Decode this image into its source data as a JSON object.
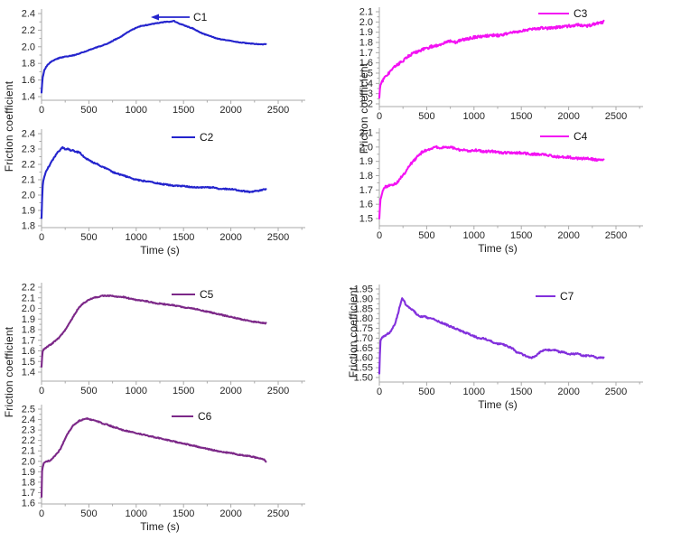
{
  "figure": {
    "ylabel": "Friction coefficient",
    "xlabel": "Time (s)"
  },
  "chart_data": [
    {
      "id": "c1",
      "type": "line",
      "title": "",
      "legend": {
        "label": "C1",
        "style": "arrow"
      },
      "color": "#2424cd",
      "noise": 0.004,
      "seed": 1,
      "xlabel": "",
      "ylabel": "Friction coefficient",
      "xticks": [
        0,
        500,
        1000,
        1500,
        2000,
        2500
      ],
      "ylim": [
        1.4,
        2.4
      ],
      "ytick_step": 0.2,
      "y_decimals": 1,
      "points": [
        [
          0,
          1.45
        ],
        [
          10,
          1.62
        ],
        [
          30,
          1.72
        ],
        [
          60,
          1.78
        ],
        [
          100,
          1.82
        ],
        [
          150,
          1.85
        ],
        [
          200,
          1.87
        ],
        [
          250,
          1.88
        ],
        [
          300,
          1.89
        ],
        [
          350,
          1.9
        ],
        [
          400,
          1.92
        ],
        [
          450,
          1.94
        ],
        [
          500,
          1.96
        ],
        [
          550,
          1.98
        ],
        [
          600,
          2.0
        ],
        [
          650,
          2.02
        ],
        [
          700,
          2.04
        ],
        [
          750,
          2.07
        ],
        [
          800,
          2.1
        ],
        [
          850,
          2.13
        ],
        [
          900,
          2.17
        ],
        [
          950,
          2.2
        ],
        [
          1000,
          2.23
        ],
        [
          1050,
          2.25
        ],
        [
          1100,
          2.26
        ],
        [
          1150,
          2.27
        ],
        [
          1200,
          2.28
        ],
        [
          1250,
          2.29
        ],
        [
          1300,
          2.3
        ],
        [
          1350,
          2.3
        ],
        [
          1400,
          2.31
        ],
        [
          1450,
          2.28
        ],
        [
          1500,
          2.26
        ],
        [
          1550,
          2.24
        ],
        [
          1600,
          2.22
        ],
        [
          1650,
          2.19
        ],
        [
          1700,
          2.16
        ],
        [
          1750,
          2.14
        ],
        [
          1800,
          2.12
        ],
        [
          1850,
          2.1
        ],
        [
          1900,
          2.09
        ],
        [
          1950,
          2.08
        ],
        [
          2000,
          2.07
        ],
        [
          2050,
          2.06
        ],
        [
          2100,
          2.05
        ],
        [
          2200,
          2.04
        ],
        [
          2300,
          2.03
        ],
        [
          2370,
          2.03
        ]
      ]
    },
    {
      "id": "c2",
      "type": "line",
      "title": "",
      "legend": {
        "label": "C2",
        "style": "line"
      },
      "color": "#2424cd",
      "noise": 0.004,
      "seed": 2,
      "xlabel": "Time (s)",
      "ylabel": "Friction coefficient",
      "xticks": [
        0,
        500,
        1000,
        1500,
        2000,
        2500
      ],
      "ylim": [
        1.8,
        2.4
      ],
      "ytick_step": 0.1,
      "y_decimals": 1,
      "points": [
        [
          0,
          1.85
        ],
        [
          10,
          2.05
        ],
        [
          20,
          2.1
        ],
        [
          40,
          2.14
        ],
        [
          60,
          2.17
        ],
        [
          80,
          2.19
        ],
        [
          100,
          2.21
        ],
        [
          130,
          2.24
        ],
        [
          160,
          2.27
        ],
        [
          190,
          2.29
        ],
        [
          220,
          2.31
        ],
        [
          250,
          2.3
        ],
        [
          280,
          2.3
        ],
        [
          310,
          2.29
        ],
        [
          340,
          2.29
        ],
        [
          370,
          2.28
        ],
        [
          400,
          2.28
        ],
        [
          430,
          2.26
        ],
        [
          460,
          2.24
        ],
        [
          500,
          2.23
        ],
        [
          550,
          2.21
        ],
        [
          600,
          2.2
        ],
        [
          650,
          2.18
        ],
        [
          700,
          2.17
        ],
        [
          750,
          2.15
        ],
        [
          800,
          2.14
        ],
        [
          850,
          2.13
        ],
        [
          900,
          2.12
        ],
        [
          950,
          2.11
        ],
        [
          1000,
          2.1
        ],
        [
          1100,
          2.09
        ],
        [
          1200,
          2.08
        ],
        [
          1300,
          2.07
        ],
        [
          1400,
          2.06
        ],
        [
          1500,
          2.06
        ],
        [
          1600,
          2.05
        ],
        [
          1700,
          2.05
        ],
        [
          1800,
          2.05
        ],
        [
          1900,
          2.04
        ],
        [
          2000,
          2.04
        ],
        [
          2100,
          2.03
        ],
        [
          2200,
          2.02
        ],
        [
          2300,
          2.03
        ],
        [
          2370,
          2.04
        ]
      ]
    },
    {
      "id": "c3",
      "type": "line",
      "title": "",
      "legend": {
        "label": "C3",
        "style": "line"
      },
      "color": "#f312f3",
      "noise": 0.013,
      "seed": 3,
      "xlabel": "",
      "ylabel": "Friction coefficient",
      "xticks": [
        0,
        500,
        1000,
        1500,
        2000,
        2500
      ],
      "ylim": [
        1.2,
        2.1
      ],
      "ytick_step": 0.1,
      "y_decimals": 1,
      "points": [
        [
          0,
          1.26
        ],
        [
          10,
          1.38
        ],
        [
          30,
          1.42
        ],
        [
          60,
          1.46
        ],
        [
          100,
          1.5
        ],
        [
          150,
          1.55
        ],
        [
          200,
          1.59
        ],
        [
          250,
          1.62
        ],
        [
          300,
          1.66
        ],
        [
          350,
          1.69
        ],
        [
          400,
          1.71
        ],
        [
          450,
          1.73
        ],
        [
          500,
          1.74
        ],
        [
          550,
          1.76
        ],
        [
          600,
          1.77
        ],
        [
          650,
          1.78
        ],
        [
          700,
          1.8
        ],
        [
          750,
          1.81
        ],
        [
          800,
          1.8
        ],
        [
          850,
          1.82
        ],
        [
          900,
          1.83
        ],
        [
          950,
          1.84
        ],
        [
          1000,
          1.85
        ],
        [
          1100,
          1.86
        ],
        [
          1200,
          1.87
        ],
        [
          1300,
          1.87
        ],
        [
          1400,
          1.9
        ],
        [
          1500,
          1.91
        ],
        [
          1600,
          1.93
        ],
        [
          1700,
          1.94
        ],
        [
          1800,
          1.94
        ],
        [
          1900,
          1.95
        ],
        [
          2000,
          1.96
        ],
        [
          2100,
          1.97
        ],
        [
          2200,
          1.96
        ],
        [
          2300,
          1.99
        ],
        [
          2370,
          2.0
        ]
      ]
    },
    {
      "id": "c4",
      "type": "line",
      "title": "",
      "legend": {
        "label": "C4",
        "style": "line"
      },
      "color": "#f312f3",
      "noise": 0.008,
      "seed": 4,
      "xlabel": "Time (s)",
      "ylabel": "Friction coefficient",
      "xticks": [
        0,
        500,
        1000,
        1500,
        2000,
        2500
      ],
      "ylim": [
        1.5,
        2.1
      ],
      "ytick_step": 0.1,
      "y_decimals": 1,
      "points": [
        [
          0,
          1.5
        ],
        [
          10,
          1.62
        ],
        [
          20,
          1.66
        ],
        [
          40,
          1.7
        ],
        [
          60,
          1.72
        ],
        [
          100,
          1.73
        ],
        [
          130,
          1.74
        ],
        [
          160,
          1.74
        ],
        [
          200,
          1.76
        ],
        [
          230,
          1.79
        ],
        [
          260,
          1.81
        ],
        [
          300,
          1.85
        ],
        [
          330,
          1.88
        ],
        [
          360,
          1.9
        ],
        [
          400,
          1.93
        ],
        [
          430,
          1.95
        ],
        [
          460,
          1.97
        ],
        [
          500,
          1.98
        ],
        [
          550,
          1.99
        ],
        [
          600,
          2.0
        ],
        [
          650,
          1.99
        ],
        [
          700,
          2.0
        ],
        [
          750,
          2.0
        ],
        [
          800,
          1.99
        ],
        [
          850,
          1.98
        ],
        [
          900,
          1.98
        ],
        [
          950,
          1.97
        ],
        [
          1000,
          1.98
        ],
        [
          1100,
          1.97
        ],
        [
          1200,
          1.97
        ],
        [
          1300,
          1.96
        ],
        [
          1400,
          1.96
        ],
        [
          1500,
          1.96
        ],
        [
          1600,
          1.95
        ],
        [
          1700,
          1.95
        ],
        [
          1800,
          1.94
        ],
        [
          1900,
          1.93
        ],
        [
          2000,
          1.93
        ],
        [
          2100,
          1.92
        ],
        [
          2200,
          1.92
        ],
        [
          2300,
          1.91
        ],
        [
          2370,
          1.91
        ]
      ]
    },
    {
      "id": "c5",
      "type": "line",
      "title": "",
      "legend": {
        "label": "C5",
        "style": "line"
      },
      "color": "#7c2888",
      "noise": 0.005,
      "seed": 5,
      "xlabel": "",
      "ylabel": "Friction coefficient",
      "xticks": [
        0,
        500,
        1000,
        1500,
        2000,
        2500
      ],
      "ylim": [
        1.4,
        2.2
      ],
      "ytick_step": 0.1,
      "y_decimals": 1,
      "points": [
        [
          0,
          1.45
        ],
        [
          10,
          1.6
        ],
        [
          30,
          1.62
        ],
        [
          60,
          1.64
        ],
        [
          100,
          1.66
        ],
        [
          140,
          1.69
        ],
        [
          180,
          1.72
        ],
        [
          220,
          1.76
        ],
        [
          260,
          1.81
        ],
        [
          300,
          1.87
        ],
        [
          340,
          1.93
        ],
        [
          380,
          1.99
        ],
        [
          420,
          2.03
        ],
        [
          460,
          2.06
        ],
        [
          500,
          2.08
        ],
        [
          550,
          2.1
        ],
        [
          600,
          2.11
        ],
        [
          650,
          2.12
        ],
        [
          700,
          2.12
        ],
        [
          750,
          2.12
        ],
        [
          800,
          2.11
        ],
        [
          850,
          2.11
        ],
        [
          900,
          2.1
        ],
        [
          950,
          2.09
        ],
        [
          1000,
          2.08
        ],
        [
          1100,
          2.07
        ],
        [
          1200,
          2.05
        ],
        [
          1300,
          2.04
        ],
        [
          1400,
          2.03
        ],
        [
          1500,
          2.01
        ],
        [
          1600,
          2.0
        ],
        [
          1700,
          1.98
        ],
        [
          1800,
          1.96
        ],
        [
          1900,
          1.94
        ],
        [
          2000,
          1.92
        ],
        [
          2100,
          1.9
        ],
        [
          2200,
          1.88
        ],
        [
          2300,
          1.87
        ],
        [
          2370,
          1.86
        ]
      ]
    },
    {
      "id": "c6",
      "type": "line",
      "title": "",
      "legend": {
        "label": "C6",
        "style": "line"
      },
      "color": "#7c2888",
      "noise": 0.005,
      "seed": 6,
      "xlabel": "Time (s)",
      "ylabel": "Friction coefficient",
      "xticks": [
        0,
        500,
        1000,
        1500,
        2000,
        2500
      ],
      "ylim": [
        1.6,
        2.5
      ],
      "ytick_step": 0.1,
      "y_decimals": 1,
      "points": [
        [
          0,
          1.66
        ],
        [
          5,
          1.9
        ],
        [
          15,
          1.96
        ],
        [
          30,
          1.99
        ],
        [
          60,
          2.0
        ],
        [
          100,
          2.01
        ],
        [
          130,
          2.04
        ],
        [
          160,
          2.07
        ],
        [
          200,
          2.12
        ],
        [
          230,
          2.18
        ],
        [
          260,
          2.24
        ],
        [
          300,
          2.3
        ],
        [
          330,
          2.34
        ],
        [
          360,
          2.36
        ],
        [
          400,
          2.39
        ],
        [
          440,
          2.4
        ],
        [
          480,
          2.41
        ],
        [
          520,
          2.4
        ],
        [
          560,
          2.39
        ],
        [
          600,
          2.38
        ],
        [
          650,
          2.36
        ],
        [
          700,
          2.35
        ],
        [
          750,
          2.33
        ],
        [
          800,
          2.32
        ],
        [
          850,
          2.3
        ],
        [
          900,
          2.29
        ],
        [
          950,
          2.28
        ],
        [
          1000,
          2.27
        ],
        [
          1100,
          2.25
        ],
        [
          1200,
          2.23
        ],
        [
          1300,
          2.21
        ],
        [
          1400,
          2.19
        ],
        [
          1500,
          2.17
        ],
        [
          1600,
          2.15
        ],
        [
          1700,
          2.13
        ],
        [
          1800,
          2.11
        ],
        [
          1900,
          2.09
        ],
        [
          2000,
          2.08
        ],
        [
          2100,
          2.06
        ],
        [
          2200,
          2.05
        ],
        [
          2300,
          2.03
        ],
        [
          2350,
          2.02
        ],
        [
          2370,
          2.0
        ]
      ]
    },
    {
      "id": "c7",
      "type": "line",
      "title": "",
      "legend": {
        "label": "C7",
        "style": "line"
      },
      "color": "#8230dc",
      "noise": 0.004,
      "seed": 7,
      "xlabel": "Time (s)",
      "ylabel": "Friction coefficient",
      "xticks": [
        0,
        500,
        1000,
        1500,
        2000,
        2500
      ],
      "ylim": [
        1.5,
        1.95
      ],
      "ytick_step": 0.05,
      "y_decimals": 2,
      "points": [
        [
          0,
          1.52
        ],
        [
          10,
          1.68
        ],
        [
          20,
          1.7
        ],
        [
          50,
          1.71
        ],
        [
          80,
          1.72
        ],
        [
          110,
          1.73
        ],
        [
          140,
          1.75
        ],
        [
          170,
          1.78
        ],
        [
          200,
          1.83
        ],
        [
          220,
          1.87
        ],
        [
          240,
          1.9
        ],
        [
          260,
          1.89
        ],
        [
          280,
          1.87
        ],
        [
          300,
          1.86
        ],
        [
          330,
          1.85
        ],
        [
          360,
          1.84
        ],
        [
          400,
          1.82
        ],
        [
          440,
          1.81
        ],
        [
          480,
          1.81
        ],
        [
          520,
          1.8
        ],
        [
          560,
          1.8
        ],
        [
          600,
          1.79
        ],
        [
          650,
          1.78
        ],
        [
          700,
          1.77
        ],
        [
          750,
          1.76
        ],
        [
          800,
          1.75
        ],
        [
          850,
          1.74
        ],
        [
          900,
          1.73
        ],
        [
          950,
          1.72
        ],
        [
          1000,
          1.71
        ],
        [
          1050,
          1.7
        ],
        [
          1100,
          1.7
        ],
        [
          1150,
          1.69
        ],
        [
          1200,
          1.68
        ],
        [
          1250,
          1.67
        ],
        [
          1300,
          1.67
        ],
        [
          1350,
          1.66
        ],
        [
          1400,
          1.65
        ],
        [
          1450,
          1.63
        ],
        [
          1500,
          1.62
        ],
        [
          1550,
          1.61
        ],
        [
          1600,
          1.6
        ],
        [
          1650,
          1.61
        ],
        [
          1700,
          1.63
        ],
        [
          1750,
          1.64
        ],
        [
          1800,
          1.64
        ],
        [
          1850,
          1.64
        ],
        [
          1900,
          1.63
        ],
        [
          1950,
          1.63
        ],
        [
          2000,
          1.62
        ],
        [
          2050,
          1.62
        ],
        [
          2100,
          1.62
        ],
        [
          2150,
          1.61
        ],
        [
          2200,
          1.61
        ],
        [
          2250,
          1.61
        ],
        [
          2300,
          1.6
        ],
        [
          2370,
          1.6
        ]
      ]
    }
  ]
}
